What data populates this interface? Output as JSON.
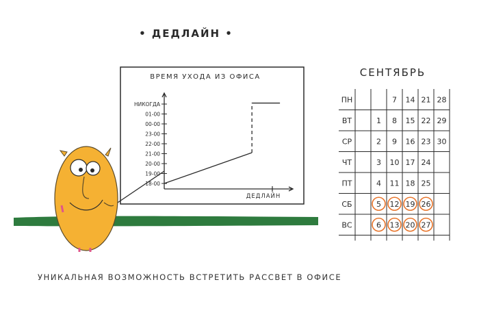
{
  "header": {
    "title": "• ДЕДЛАЙН •"
  },
  "caption": "УНИКАЛЬНАЯ ВОЗМОЖНОСТЬ ВСТРЕТИТЬ РАССВЕТ В ОФИСЕ",
  "chart_data": {
    "type": "line",
    "title": "ВРЕМЯ УХОДА ИЗ ОФИСА",
    "xlabel": "ДЕДЛАЙН",
    "ylabel": "",
    "y_ticks": [
      "18-00",
      "19-00",
      "20-00",
      "21-00",
      "22-00",
      "23-00",
      "00-00",
      "01-00",
      "НИКОГДА"
    ],
    "series": [
      {
        "x": [
          0,
          0.72
        ],
        "y": [
          0,
          3.1
        ]
      },
      {
        "x": [
          0.72,
          0.72
        ],
        "y": [
          3.1,
          8.1
        ],
        "dashed": true
      },
      {
        "x": [
          0.72,
          0.95
        ],
        "y": [
          8.1,
          8.1
        ]
      }
    ]
  },
  "calendar": {
    "month": "СЕНТЯБРЬ",
    "days": [
      "ПН",
      "ВТ",
      "СР",
      "ЧТ",
      "ПТ",
      "СБ",
      "ВС"
    ],
    "weeks": [
      [
        "",
        "",
        "",
        "",
        "",
        "",
        ""
      ],
      [
        "",
        "1",
        "2",
        "3",
        "4",
        "5",
        "6"
      ],
      [
        "7",
        "8",
        "9",
        "10",
        "11",
        "12",
        "13"
      ],
      [
        "14",
        "15",
        "16",
        "17",
        "18",
        "19",
        "20"
      ],
      [
        "21",
        "22",
        "23",
        "24",
        "25",
        "26",
        "27"
      ],
      [
        "28",
        "29",
        "30",
        "",
        "",
        "",
        ""
      ]
    ],
    "circled_days": [
      "5",
      "6",
      "12",
      "13",
      "19",
      "20",
      "26",
      "27"
    ],
    "circle_color": "#e8742a"
  },
  "colors": {
    "character": "#f5b133",
    "character_outline": "#5a4a2a",
    "ground": "#2e7b3e",
    "ink": "#2a2a2a"
  }
}
